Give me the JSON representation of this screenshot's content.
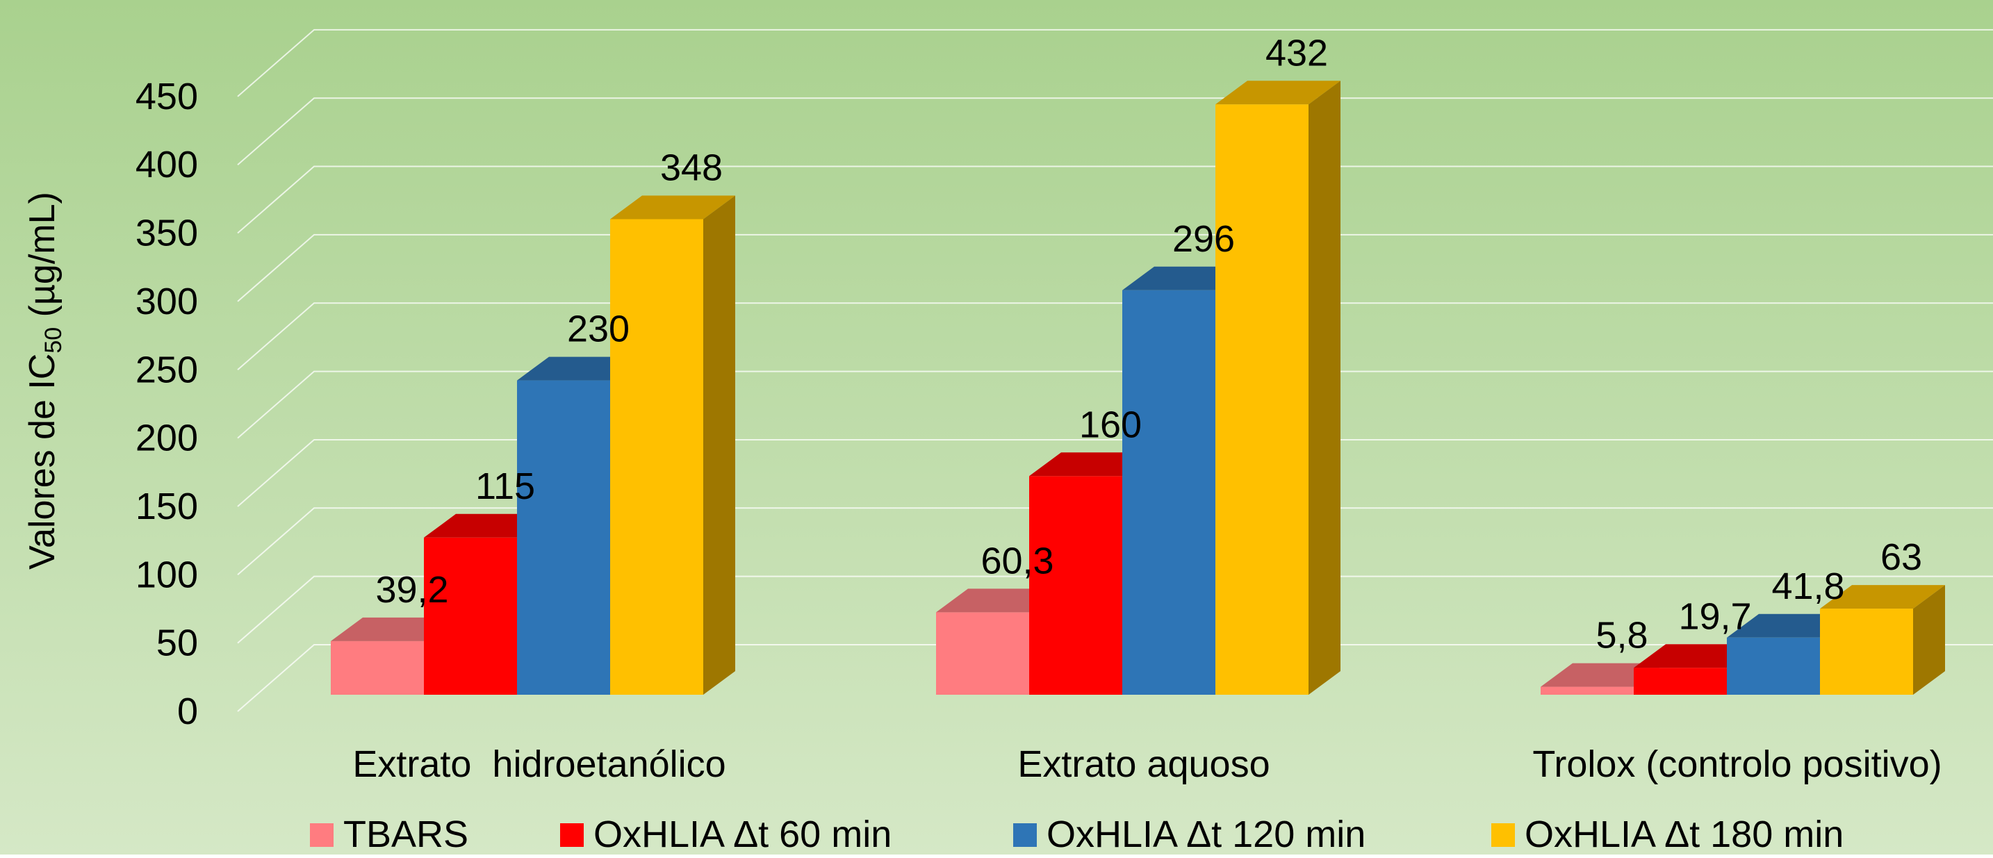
{
  "chart_data": {
    "type": "bar",
    "title": "",
    "xlabel": "",
    "ylabel": {
      "prefix": "Valores de IC",
      "subscript": "50",
      "suffix": " (µg/mL)"
    },
    "ylim": [
      0,
      450
    ],
    "yticks": [
      0,
      50,
      100,
      150,
      200,
      250,
      300,
      350,
      400,
      450
    ],
    "grid": true,
    "legend_position": "bottom",
    "categories": [
      "Extrato  hidroetanólico",
      "Extrato aquoso",
      "Trolox (controlo positivo)"
    ],
    "series": [
      {
        "name": "TBARS",
        "values": [
          39.2,
          60.3,
          5.8
        ],
        "labels": [
          "39,2",
          "60,3",
          "5,8"
        ],
        "color": "#FF7C80"
      },
      {
        "name": "OxHLIA Δt 60 min",
        "values": [
          115,
          160,
          19.7
        ],
        "labels": [
          "115",
          "160",
          "19,7"
        ],
        "color": "#FF0000"
      },
      {
        "name": "OxHLIA Δt 120 min",
        "values": [
          230,
          296,
          41.8
        ],
        "labels": [
          "230",
          "296",
          "41,8"
        ],
        "color": "#2E75B6"
      },
      {
        "name": "OxHLIA Δt 180 min",
        "values": [
          348,
          432,
          63
        ],
        "labels": [
          "348",
          "432",
          "63"
        ],
        "color": "#FFC000"
      }
    ]
  }
}
